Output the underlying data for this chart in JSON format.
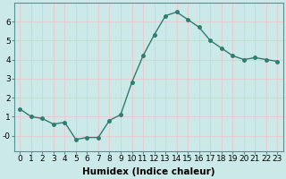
{
  "x": [
    0,
    1,
    2,
    3,
    4,
    5,
    6,
    7,
    8,
    9,
    10,
    11,
    12,
    13,
    14,
    15,
    16,
    17,
    18,
    19,
    20,
    21,
    22,
    23
  ],
  "y": [
    1.4,
    1.0,
    0.9,
    0.6,
    0.7,
    -0.2,
    -0.1,
    -0.1,
    0.8,
    1.1,
    2.8,
    4.2,
    5.3,
    6.3,
    6.5,
    6.1,
    5.7,
    5.0,
    4.6,
    4.2,
    4.0,
    4.1,
    4.0,
    3.9
  ],
  "line_color": "#2e7d6e",
  "marker": "o",
  "markersize": 2.5,
  "linewidth": 1.0,
  "xlabel": "Humidex (Indice chaleur)",
  "xlim": [
    -0.5,
    23.5
  ],
  "ylim": [
    -0.8,
    7.0
  ],
  "yticks": [
    0,
    1,
    2,
    3,
    4,
    5,
    6
  ],
  "ytick_labels": [
    "-0",
    "1",
    "2",
    "3",
    "4",
    "5",
    "6"
  ],
  "xticks": [
    0,
    1,
    2,
    3,
    4,
    5,
    6,
    7,
    8,
    9,
    10,
    11,
    12,
    13,
    14,
    15,
    16,
    17,
    18,
    19,
    20,
    21,
    22,
    23
  ],
  "bg_color": "#cce9e9",
  "grid_color": "#e8c8c8",
  "grid_linewidth": 0.6,
  "xlabel_fontsize": 7.5,
  "tick_fontsize": 6.5,
  "spine_color": "#5a9090"
}
